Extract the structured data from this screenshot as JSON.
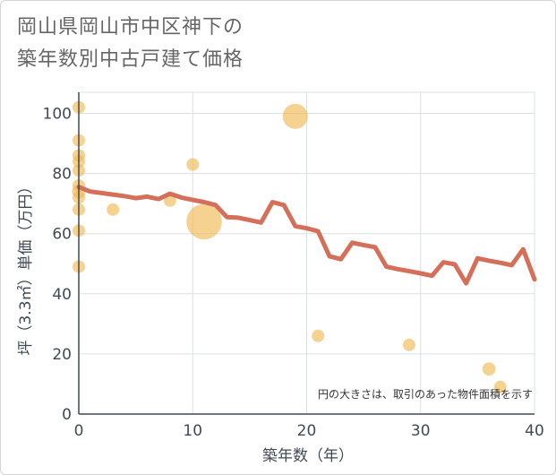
{
  "title_line1": "岡山県岡山市中区神下の",
  "title_line2": "築年数別中古戸建て価格",
  "chart_data": {
    "type": "scatter",
    "xlabel": "築年数（年）",
    "ylabel": "坪（3.3㎡）単価（万円）",
    "xlim": [
      0,
      40
    ],
    "ylim": [
      0,
      107
    ],
    "x_ticks": [
      0,
      10,
      20,
      30,
      40
    ],
    "y_ticks": [
      0,
      20,
      40,
      60,
      80,
      100
    ],
    "note": "円の大きさは、取引のあった物件面積を示す",
    "colors": {
      "bubble": "#f0b64e",
      "line": "#d46f5a",
      "grid": "#d9e0e6",
      "axis": "#3f4a55"
    },
    "bubbles": [
      {
        "x": 0,
        "y": 102,
        "size": 1
      },
      {
        "x": 0,
        "y": 91,
        "size": 1
      },
      {
        "x": 0,
        "y": 86,
        "size": 1
      },
      {
        "x": 0,
        "y": 84,
        "size": 1
      },
      {
        "x": 0,
        "y": 81,
        "size": 1
      },
      {
        "x": 0,
        "y": 76,
        "size": 1
      },
      {
        "x": 0,
        "y": 74,
        "size": 1.2
      },
      {
        "x": 0,
        "y": 72,
        "size": 1
      },
      {
        "x": 0,
        "y": 68,
        "size": 1
      },
      {
        "x": 0,
        "y": 61,
        "size": 1
      },
      {
        "x": 0,
        "y": 49,
        "size": 1
      },
      {
        "x": 3,
        "y": 68,
        "size": 1
      },
      {
        "x": 8,
        "y": 71,
        "size": 1
      },
      {
        "x": 10,
        "y": 83,
        "size": 1
      },
      {
        "x": 11,
        "y": 64,
        "size": 8
      },
      {
        "x": 19,
        "y": 99,
        "size": 4
      },
      {
        "x": 21,
        "y": 26,
        "size": 1
      },
      {
        "x": 29,
        "y": 23,
        "size": 1
      },
      {
        "x": 36,
        "y": 15,
        "size": 1.1
      },
      {
        "x": 37,
        "y": 9,
        "size": 1
      }
    ],
    "trend": {
      "name": "average",
      "x": [
        0,
        1,
        2,
        3,
        4,
        5,
        6,
        7,
        8,
        9,
        10,
        11,
        12,
        13,
        14,
        15,
        16,
        17,
        18,
        19,
        20,
        21,
        22,
        23,
        24,
        25,
        26,
        27,
        28,
        29,
        30,
        31,
        32,
        33,
        34,
        35,
        36,
        37,
        38,
        39,
        40
      ],
      "y": [
        75.5,
        74,
        73.5,
        73,
        72.5,
        71.8,
        72.3,
        71.5,
        73.3,
        72,
        71.2,
        70.5,
        69.5,
        65.5,
        65.3,
        64.5,
        63.7,
        70.5,
        69.5,
        62.5,
        61.8,
        60.8,
        52.5,
        51.5,
        57,
        56.2,
        55.5,
        49,
        48.2,
        47.5,
        46.8,
        46,
        50.5,
        49.8,
        43.5,
        51.8,
        51,
        50.3,
        49.5,
        54.8,
        44.8
      ]
    }
  }
}
